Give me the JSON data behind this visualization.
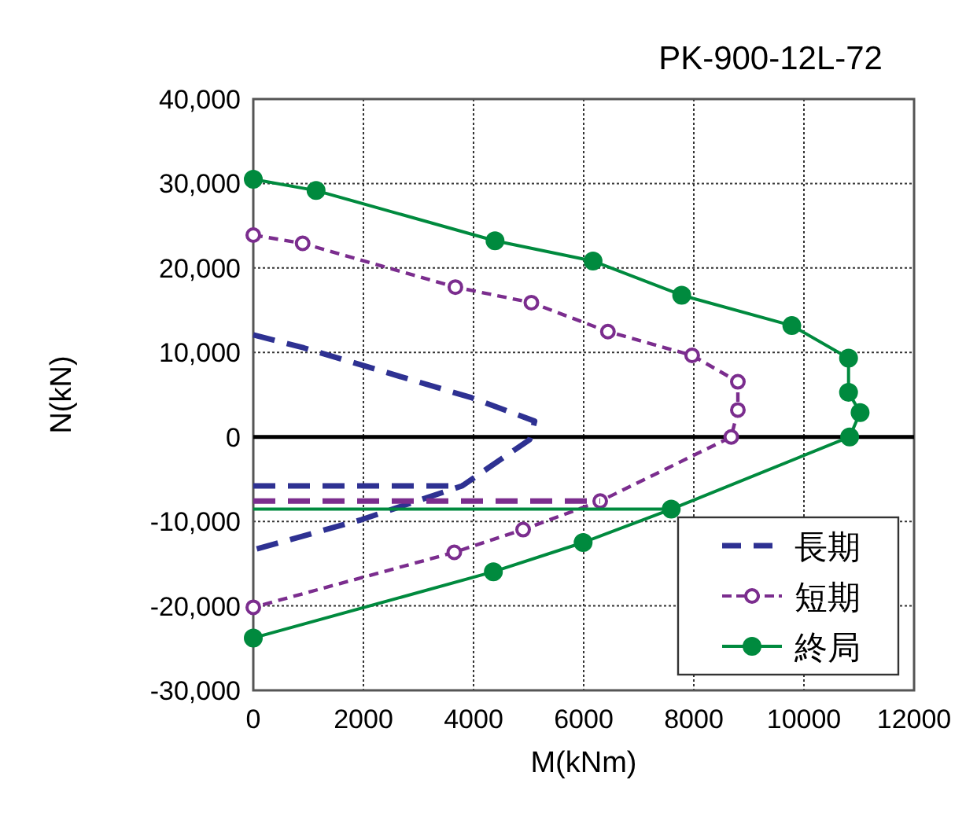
{
  "chart_data": {
    "type": "line",
    "title": "PK-900-12L-72",
    "xlabel": "M(kNm)",
    "ylabel": "N(kN)",
    "xlim": [
      0,
      12000
    ],
    "xticks": [
      0,
      2000,
      4000,
      6000,
      8000,
      10000,
      12000
    ],
    "ylim": [
      -30000,
      40000
    ],
    "yticks": [
      {
        "value": -30000,
        "label": "-30,000"
      },
      {
        "value": -20000,
        "label": "-20,000"
      },
      {
        "value": -10000,
        "label": "-10,000"
      },
      {
        "value": 0,
        "label": "0"
      },
      {
        "value": 10000,
        "label": "10,000"
      },
      {
        "value": 20000,
        "label": "20,000"
      },
      {
        "value": 30000,
        "label": "30,000"
      },
      {
        "value": 40000,
        "label": "40,000"
      }
    ],
    "grid": true,
    "legend": "bottom right",
    "ref_lines": [
      {
        "axis": "y",
        "value": 0,
        "color": "#000000",
        "line_style": "solid"
      }
    ],
    "series": [
      {
        "name": "長期",
        "color": "#2e3192",
        "line_style": "dashed",
        "marker": "none",
        "x": [
          0,
          920,
          2070,
          3970,
          5110,
          5020,
          3790,
          1970,
          0
        ],
        "values": [
          12080,
          10540,
          8310,
          4630,
          1870,
          -310,
          -5800,
          -9780,
          -13380
        ]
      },
      {
        "name": "短期",
        "color": "#7b2d8e",
        "line_style": "dashed",
        "marker": "circle",
        "x": [
          0,
          896,
          3670,
          5050,
          6440,
          7970,
          8800,
          8800,
          8680,
          6300,
          4900,
          3650,
          0
        ],
        "values": [
          23900,
          22920,
          17740,
          15900,
          12470,
          9650,
          6530,
          3190,
          0,
          -7600,
          -10970,
          -13660,
          -20170
        ]
      },
      {
        "name": "終局",
        "color": "#008a3e",
        "line_style": "solid",
        "marker": "circle",
        "x": [
          0,
          1140,
          4390,
          6170,
          7780,
          9780,
          10810,
          10810,
          11020,
          10830,
          7590,
          5990,
          4360,
          0
        ],
        "values": [
          30500,
          29170,
          23220,
          20830,
          16780,
          13180,
          9320,
          5280,
          2890,
          0,
          -8550,
          -12500,
          -15960,
          -23800
        ]
      },
      {
        "color": "#2e3192",
        "line_style": "dashed",
        "marker": "none",
        "x": [
          0,
          3790
        ],
        "values": [
          -5800,
          -5800
        ]
      },
      {
        "color": "#7b2d8e",
        "line_style": "dashed",
        "marker": "none",
        "x": [
          0,
          6300
        ],
        "values": [
          -7600,
          -7600
        ]
      },
      {
        "color": "#008a3e",
        "line_style": "solid",
        "marker": "none",
        "x": [
          0,
          7590
        ],
        "values": [
          -8550,
          -8550
        ]
      }
    ]
  }
}
